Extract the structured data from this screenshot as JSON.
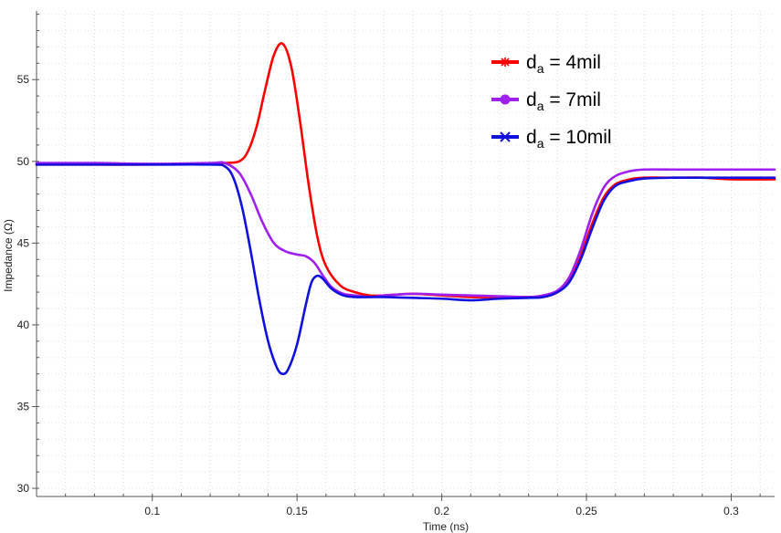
{
  "chart_data": {
    "type": "line",
    "title": "",
    "xlabel": "Time (ns)",
    "ylabel": "Impedance (Ω)",
    "xlim": [
      0.06,
      0.315
    ],
    "ylim": [
      29.5,
      59.2
    ],
    "x_ticks": [
      0.1,
      0.15,
      0.2,
      0.25,
      0.3
    ],
    "x_tick_labels": [
      "0.1",
      "0.15",
      "0.2",
      "0.25",
      "0.3"
    ],
    "y_ticks": [
      30,
      35,
      40,
      45,
      50,
      55
    ],
    "y_tick_labels": [
      "30",
      "35",
      "40",
      "45",
      "50",
      "55"
    ],
    "grid": true,
    "legend_position": "top-right",
    "series": [
      {
        "name": "d_a = 4mil",
        "legend_main": "d",
        "legend_sub": "a",
        "legend_rest": " = 4mil",
        "color": "#ff0000",
        "marker": "star",
        "x": [
          0.06,
          0.08,
          0.1,
          0.12,
          0.125,
          0.13,
          0.133,
          0.136,
          0.139,
          0.142,
          0.145,
          0.148,
          0.151,
          0.154,
          0.157,
          0.16,
          0.165,
          0.17,
          0.175,
          0.18,
          0.19,
          0.2,
          0.21,
          0.22,
          0.23,
          0.235,
          0.24,
          0.244,
          0.248,
          0.252,
          0.256,
          0.26,
          0.265,
          0.27,
          0.28,
          0.29,
          0.3,
          0.315
        ],
        "y": [
          49.8,
          49.8,
          49.8,
          49.85,
          49.9,
          50.0,
          50.6,
          52.1,
          54.4,
          56.5,
          57.2,
          55.8,
          52.5,
          48.6,
          45.4,
          43.6,
          42.4,
          42.0,
          41.8,
          41.8,
          41.9,
          41.8,
          41.7,
          41.7,
          41.7,
          41.7,
          42.0,
          42.7,
          44.2,
          46.2,
          47.8,
          48.6,
          48.9,
          49.0,
          49.0,
          49.0,
          48.9,
          48.9
        ]
      },
      {
        "name": "d_a = 7mil",
        "legend_main": "d",
        "legend_sub": "a",
        "legend_rest": " = 7mil",
        "color": "#a020f0",
        "marker": "circle",
        "x": [
          0.06,
          0.08,
          0.1,
          0.12,
          0.125,
          0.13,
          0.134,
          0.138,
          0.142,
          0.146,
          0.15,
          0.153,
          0.156,
          0.159,
          0.162,
          0.166,
          0.17,
          0.175,
          0.18,
          0.19,
          0.2,
          0.21,
          0.22,
          0.23,
          0.235,
          0.24,
          0.244,
          0.248,
          0.252,
          0.256,
          0.26,
          0.265,
          0.27,
          0.28,
          0.29,
          0.3,
          0.315
        ],
        "y": [
          49.9,
          49.9,
          49.85,
          49.9,
          49.9,
          49.3,
          48.0,
          46.3,
          45.0,
          44.5,
          44.3,
          44.2,
          43.8,
          43.0,
          42.3,
          41.9,
          41.8,
          41.7,
          41.8,
          41.9,
          41.85,
          41.8,
          41.75,
          41.7,
          41.8,
          42.1,
          42.9,
          44.6,
          46.8,
          48.4,
          49.1,
          49.4,
          49.5,
          49.5,
          49.5,
          49.5,
          49.5
        ]
      },
      {
        "name": "d_a = 10mil",
        "legend_main": "d",
        "legend_sub": "a",
        "legend_rest": " = 10mil",
        "color": "#1010e0",
        "marker": "x",
        "x": [
          0.06,
          0.08,
          0.1,
          0.12,
          0.125,
          0.128,
          0.131,
          0.134,
          0.137,
          0.14,
          0.143,
          0.145,
          0.147,
          0.15,
          0.153,
          0.155,
          0.157,
          0.159,
          0.162,
          0.166,
          0.17,
          0.175,
          0.18,
          0.19,
          0.2,
          0.21,
          0.22,
          0.23,
          0.235,
          0.24,
          0.244,
          0.248,
          0.252,
          0.256,
          0.26,
          0.265,
          0.27,
          0.28,
          0.29,
          0.3,
          0.315
        ],
        "y": [
          49.8,
          49.8,
          49.8,
          49.8,
          49.7,
          49.0,
          47.2,
          44.5,
          41.5,
          39.0,
          37.4,
          37.0,
          37.3,
          38.8,
          41.2,
          42.6,
          43.0,
          42.8,
          42.2,
          41.8,
          41.7,
          41.7,
          41.7,
          41.65,
          41.6,
          41.5,
          41.6,
          41.65,
          41.7,
          42.0,
          42.6,
          44.0,
          45.9,
          47.6,
          48.5,
          48.8,
          48.95,
          49.0,
          49.0,
          49.0,
          49.0
        ]
      }
    ]
  }
}
